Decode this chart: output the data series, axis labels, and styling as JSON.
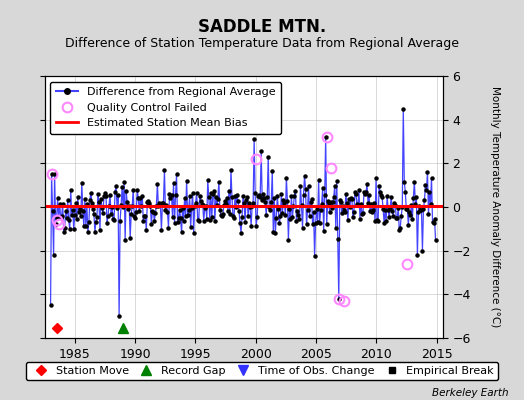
{
  "title": "SADDLE MTN.",
  "subtitle": "Difference of Station Temperature Data from Regional Average",
  "ylabel_right": "Monthly Temperature Anomaly Difference (°C)",
  "xlim": [
    1982.5,
    2015.5
  ],
  "ylim": [
    -6,
    6
  ],
  "yticks": [
    -6,
    -4,
    -2,
    0,
    2,
    4,
    6
  ],
  "xticks": [
    1985,
    1990,
    1995,
    2000,
    2005,
    2010,
    2015
  ],
  "bias_line_y": 0.05,
  "bias_color": "#ff0000",
  "line_color": "#4444ff",
  "dot_color": "#000000",
  "qc_color": "#ff88ff",
  "background_color": "#d8d8d8",
  "plot_bg_color": "#ffffff",
  "grid_color": "#aaaaaa",
  "title_fontsize": 12,
  "subtitle_fontsize": 9,
  "tick_label_fontsize": 9,
  "legend_fontsize": 8,
  "watermark": "Berkeley Earth",
  "seed": 42
}
